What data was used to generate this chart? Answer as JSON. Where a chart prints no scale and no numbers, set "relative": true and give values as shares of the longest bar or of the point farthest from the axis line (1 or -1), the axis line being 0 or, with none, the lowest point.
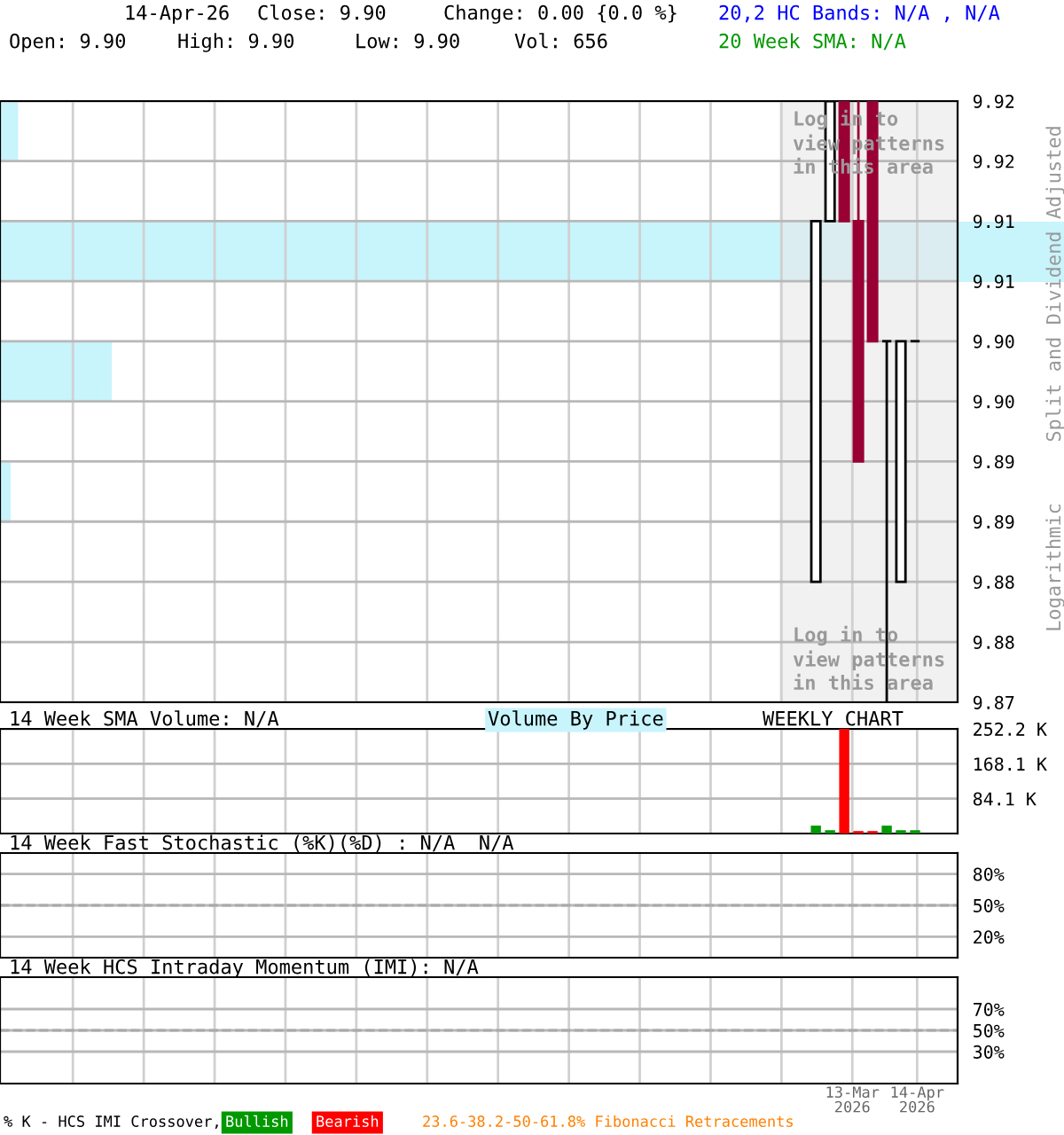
{
  "chart_data": [
    {
      "type": "candlestick",
      "x": [
        "2026-02-23",
        "2026-03-02",
        "2026-03-09",
        "2026-03-16",
        "2026-03-23",
        "2026-03-30",
        "2026-04-06",
        "2026-04-13"
      ],
      "ohlc": [
        [
          9.88,
          9.91,
          9.88,
          9.91
        ],
        [
          9.91,
          9.92,
          9.91,
          9.92
        ],
        [
          9.92,
          9.92,
          9.91,
          9.91
        ],
        [
          9.91,
          9.92,
          9.89,
          9.89
        ],
        [
          9.92,
          9.92,
          9.9,
          9.9
        ],
        [
          9.9,
          9.9,
          9.87,
          9.9
        ],
        [
          9.88,
          9.9,
          9.88,
          9.9
        ],
        [
          9.9,
          9.9,
          9.9,
          9.9
        ]
      ],
      "colors": [
        "#000000",
        "#000000",
        "#990033",
        "#990033",
        "#990033",
        "#000000",
        "#000000",
        "#000000"
      ],
      "xlim": [
        "2025-01-16",
        "2026-05-04"
      ],
      "xticks": [
        {
          "value": "2025-02-21",
          "label": null
        },
        {
          "value": "2025-03-28",
          "label": null
        },
        {
          "value": "2025-05-02",
          "label": null
        },
        {
          "value": "2025-06-06",
          "label": null
        },
        {
          "value": "2025-07-11",
          "label": null
        },
        {
          "value": "2025-08-15",
          "label": null
        },
        {
          "value": "2025-09-19",
          "label": null
        },
        {
          "value": "2025-10-24",
          "label": null
        },
        {
          "value": "2025-11-28",
          "label": null
        },
        {
          "value": "2026-01-02",
          "label": null
        },
        {
          "value": "2026-02-06",
          "label": null
        },
        {
          "value": "2026-03-13",
          "label": null
        },
        {
          "value": "2026-04-14",
          "label": null
        }
      ],
      "ylim": [
        9.87,
        9.92
      ],
      "yticks": [
        {
          "value": 9.87,
          "label": "9.87"
        },
        {
          "value": 9.875,
          "label": "9.88"
        },
        {
          "value": 9.88,
          "label": "9.88"
        },
        {
          "value": 9.885,
          "label": "9.89"
        },
        {
          "value": 9.89,
          "label": "9.89"
        },
        {
          "value": 9.895,
          "label": "9.90"
        },
        {
          "value": 9.9,
          "label": "9.90"
        },
        {
          "value": 9.905,
          "label": "9.91"
        },
        {
          "value": 9.91,
          "label": "9.91"
        },
        {
          "value": 9.915,
          "label": "9.92"
        },
        {
          "value": 9.92,
          "label": "9.92"
        }
      ],
      "log": true,
      "grid": true,
      "tick_labels": "y",
      "bands": [
        {
          "axis": "x",
          "from": "2026-02-05",
          "to": "2026-05-04",
          "color": "#e8e8e8"
        }
      ],
      "annotations": [
        "14-Apr-26",
        "Close: 9.90",
        "Change: 0.00 {0.0 %}",
        "Open: 9.90",
        "High: 9.90",
        "Low: 9.90",
        "Vol: 656",
        "20,2 HC Bands: N/A , N/A",
        "20 Week SMA: N/A",
        "Log in to\nview patterns\nin this area",
        "Log in to\nview patterns\nin this area",
        "Split and Dividend Adjusted",
        "Logarithmic"
      ]
    },
    {
      "type": "bar",
      "orientation": "horizontal",
      "relative": true,
      "title": "Volume By Price",
      "categories": [
        null,
        null,
        null,
        null
      ],
      "values": [
        0.017,
        1,
        0.105,
        0.01
      ],
      "color": "#c8f4fc"
    },
    {
      "type": "bar",
      "title": "14 Week SMA Volume: N/A",
      "x": [
        "2026-02-23",
        "2026-03-02",
        "2026-03-09",
        "2026-03-16",
        "2026-03-23",
        "2026-03-30",
        "2026-04-06",
        "2026-04-13"
      ],
      "values": [
        19000,
        8000,
        252000,
        6000,
        6000,
        19000,
        8000,
        8000
      ],
      "colors": [
        "#009900",
        "#009900",
        "#ff0000",
        "#ff0000",
        "#ff0000",
        "#009900",
        "#009900",
        "#009900"
      ],
      "xlim": [
        "2025-01-16",
        "2026-05-04"
      ],
      "xticks": [
        {
          "value": "2025-02-21",
          "label": null
        },
        {
          "value": "2025-03-28",
          "label": null
        },
        {
          "value": "2025-05-02",
          "label": null
        },
        {
          "value": "2025-06-06",
          "label": null
        },
        {
          "value": "2025-07-11",
          "label": null
        },
        {
          "value": "2025-08-15",
          "label": null
        },
        {
          "value": "2025-09-19",
          "label": null
        },
        {
          "value": "2025-10-24",
          "label": null
        },
        {
          "value": "2025-11-28",
          "label": null
        },
        {
          "value": "2026-01-02",
          "label": null
        },
        {
          "value": "2026-02-06",
          "label": null
        },
        {
          "value": "2026-03-13",
          "label": null
        },
        {
          "value": "2026-04-14",
          "label": null
        }
      ],
      "ylim": [
        0,
        252200
      ],
      "yticks": [
        {
          "value": 84100,
          "label": "84.1 K"
        },
        {
          "value": 168100,
          "label": "168.1 K"
        },
        {
          "value": 252200,
          "label": "252.2 K"
        }
      ],
      "grid": true,
      "tick_labels": "y",
      "annotations": [
        "WEEKLY CHART"
      ]
    },
    {
      "type": "line",
      "title": "14 Week Fast Stochastic (%K)(%D) : N/A  N/A",
      "xlim": [
        "2025-01-16",
        "2026-05-04"
      ],
      "xticks": [
        {
          "value": "2025-02-21",
          "label": null
        },
        {
          "value": "2025-03-28",
          "label": null
        },
        {
          "value": "2025-05-02",
          "label": null
        },
        {
          "value": "2025-06-06",
          "label": null
        },
        {
          "value": "2025-07-11",
          "label": null
        },
        {
          "value": "2025-08-15",
          "label": null
        },
        {
          "value": "2025-09-19",
          "label": null
        },
        {
          "value": "2025-10-24",
          "label": null
        },
        {
          "value": "2025-11-28",
          "label": null
        },
        {
          "value": "2026-01-02",
          "label": null
        },
        {
          "value": "2026-02-06",
          "label": null
        },
        {
          "value": "2026-03-13",
          "label": null
        },
        {
          "value": "2026-04-14",
          "label": null
        }
      ],
      "ylim": [
        0,
        100
      ],
      "yticks": [
        {
          "value": 20,
          "label": "20%"
        },
        {
          "value": 50,
          "label": "50%"
        },
        {
          "value": 80,
          "label": "80%"
        }
      ],
      "ref_lines": [
        {
          "axis": "y",
          "value": 50,
          "color": "#aaaaaa",
          "line_style": "dashed"
        }
      ],
      "grid": true,
      "tick_labels": "y"
    },
    {
      "type": "line",
      "title": "14 Week HCS Intraday Momentum (IMI): N/A",
      "xlim": [
        "2025-01-16",
        "2026-05-04"
      ],
      "xticks": [
        {
          "value": "2025-02-21",
          "label": null
        },
        {
          "value": "2025-03-28",
          "label": null
        },
        {
          "value": "2025-05-02",
          "label": null
        },
        {
          "value": "2025-06-06",
          "label": null
        },
        {
          "value": "2025-07-11",
          "label": null
        },
        {
          "value": "2025-08-15",
          "label": null
        },
        {
          "value": "2025-09-19",
          "label": null
        },
        {
          "value": "2025-10-24",
          "label": null
        },
        {
          "value": "2025-11-28",
          "label": null
        },
        {
          "value": "2026-01-02",
          "label": null
        },
        {
          "value": "2026-02-06",
          "label": null
        },
        {
          "value": "2026-03-13",
          "label": "13-Mar\n2026"
        },
        {
          "value": "2026-04-14",
          "label": "14-Apr\n2026"
        }
      ],
      "ylim": [
        0,
        100
      ],
      "yticks": [
        {
          "value": 30,
          "label": "30%"
        },
        {
          "value": 50,
          "label": "50%"
        },
        {
          "value": 70,
          "label": "70%"
        }
      ],
      "ref_lines": [
        {
          "axis": "y",
          "value": 50,
          "color": "#aaaaaa",
          "line_style": "dashed"
        }
      ],
      "grid": true,
      "annotations": [
        "% K - HCS IMI Crossover,",
        "Bullish",
        "Bearish",
        "23.6-38.2-50-61.8% Fibonacci Retracements"
      ]
    }
  ]
}
